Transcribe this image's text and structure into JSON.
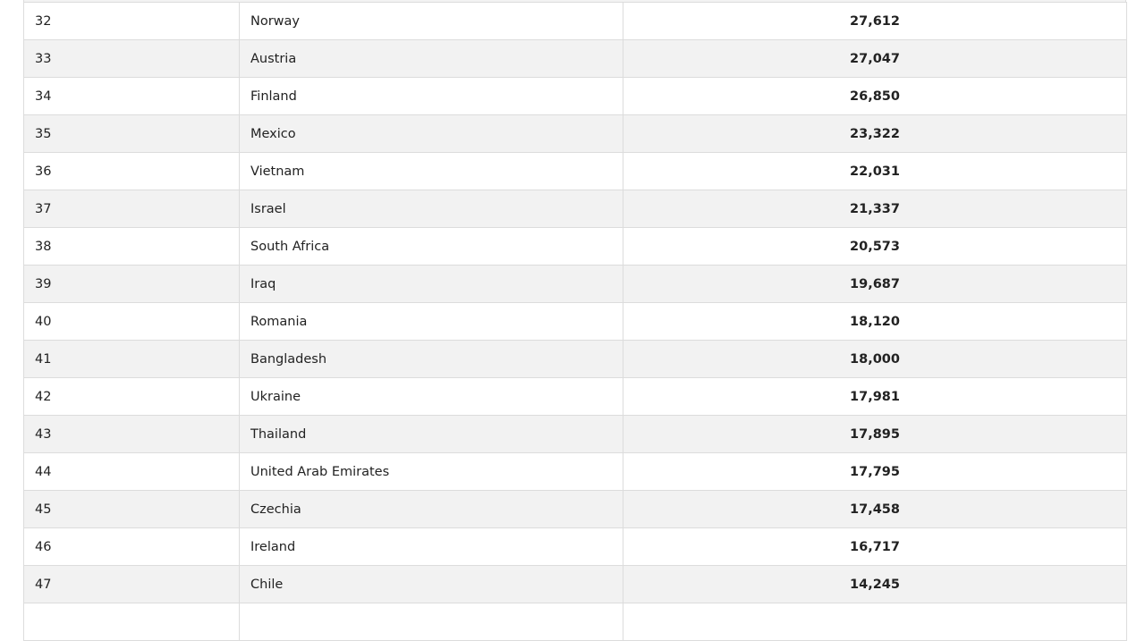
{
  "table": {
    "rows": [
      {
        "rank": "32",
        "country": "Norway",
        "value": "27,612"
      },
      {
        "rank": "33",
        "country": "Austria",
        "value": "27,047"
      },
      {
        "rank": "34",
        "country": "Finland",
        "value": "26,850"
      },
      {
        "rank": "35",
        "country": "Mexico",
        "value": "23,322"
      },
      {
        "rank": "36",
        "country": "Vietnam",
        "value": "22,031"
      },
      {
        "rank": "37",
        "country": "Israel",
        "value": "21,337"
      },
      {
        "rank": "38",
        "country": "South Africa",
        "value": "20,573"
      },
      {
        "rank": "39",
        "country": "Iraq",
        "value": "19,687"
      },
      {
        "rank": "40",
        "country": "Romania",
        "value": "18,120"
      },
      {
        "rank": "41",
        "country": "Bangladesh",
        "value": "18,000"
      },
      {
        "rank": "42",
        "country": "Ukraine",
        "value": "17,981"
      },
      {
        "rank": "43",
        "country": "Thailand",
        "value": "17,895"
      },
      {
        "rank": "44",
        "country": "United Arab Emirates",
        "value": "17,795"
      },
      {
        "rank": "45",
        "country": "Czechia",
        "value": "17,458"
      },
      {
        "rank": "46",
        "country": "Ireland",
        "value": "16,717"
      },
      {
        "rank": "47",
        "country": "Chile",
        "value": "14,245"
      },
      {
        "rank": "",
        "country": "",
        "value": ""
      }
    ]
  }
}
